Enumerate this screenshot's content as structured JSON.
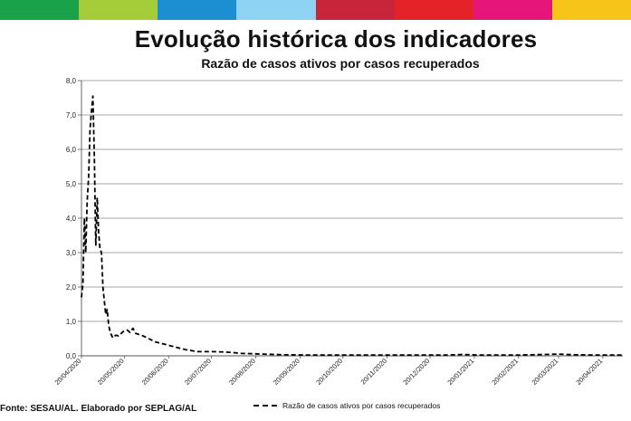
{
  "header_colors": [
    "#1aa24a",
    "#a5cd39",
    "#1b8fd2",
    "#8ed3f4",
    "#c8243a",
    "#e62229",
    "#e5157a",
    "#f6c518"
  ],
  "title": "Evolução histórica dos indicadores",
  "subtitle": "Razão de casos ativos por casos recuperados",
  "source": "Fonte: SESAU/AL. Elaborado por SEPLAG/AL",
  "chart_data": {
    "type": "line",
    "title": "Razão de casos ativos por casos recuperados",
    "xlabel": "",
    "ylabel": "",
    "ylim": [
      0,
      8
    ],
    "yticks": [
      "0,0",
      "1,0",
      "2,0",
      "3,0",
      "4,0",
      "5,0",
      "6,0",
      "7,0",
      "8,0"
    ],
    "xticks": [
      "20/04/2020",
      "20/05/2020",
      "20/06/2020",
      "20/07/2020",
      "20/08/2020",
      "20/09/2020",
      "20/10/2020",
      "20/11/2020",
      "20/12/2020",
      "20/01/2021",
      "20/02/2021",
      "20/03/2021",
      "20/04/2021"
    ],
    "grid": "horizontal",
    "legend_position": "bottom",
    "series": [
      {
        "name": "Razão de casos ativos por casos recuperados",
        "color": "#000000",
        "line_style": "dashed",
        "points": [
          [
            "2020-04-20",
            1.7
          ],
          [
            "2020-04-21",
            2.1
          ],
          [
            "2020-04-22",
            4.0
          ],
          [
            "2020-04-23",
            3.0
          ],
          [
            "2020-04-24",
            4.5
          ],
          [
            "2020-04-25",
            5.2
          ],
          [
            "2020-04-26",
            6.6
          ],
          [
            "2020-04-27",
            7.1
          ],
          [
            "2020-04-28",
            7.55
          ],
          [
            "2020-04-29",
            5.8
          ],
          [
            "2020-04-30",
            3.2
          ],
          [
            "2020-05-01",
            4.6
          ],
          [
            "2020-05-02",
            3.6
          ],
          [
            "2020-05-03",
            3.1
          ],
          [
            "2020-05-04",
            3.0
          ],
          [
            "2020-05-05",
            2.0
          ],
          [
            "2020-05-06",
            1.6
          ],
          [
            "2020-05-07",
            1.2
          ],
          [
            "2020-05-08",
            1.35
          ],
          [
            "2020-05-09",
            0.9
          ],
          [
            "2020-05-10",
            0.7
          ],
          [
            "2020-05-11",
            0.6
          ],
          [
            "2020-05-12",
            0.52
          ],
          [
            "2020-05-14",
            0.6
          ],
          [
            "2020-05-16",
            0.58
          ],
          [
            "2020-05-19",
            0.7
          ],
          [
            "2020-05-22",
            0.75
          ],
          [
            "2020-05-24",
            0.68
          ],
          [
            "2020-05-26",
            0.8
          ],
          [
            "2020-05-28",
            0.65
          ],
          [
            "2020-06-01",
            0.6
          ],
          [
            "2020-06-06",
            0.5
          ],
          [
            "2020-06-11",
            0.4
          ],
          [
            "2020-06-18",
            0.33
          ],
          [
            "2020-06-25",
            0.25
          ],
          [
            "2020-07-02",
            0.18
          ],
          [
            "2020-07-10",
            0.12
          ],
          [
            "2020-07-20",
            0.12
          ],
          [
            "2020-07-30",
            0.11
          ],
          [
            "2020-08-10",
            0.07
          ],
          [
            "2020-08-25",
            0.05
          ],
          [
            "2020-09-10",
            0.03
          ],
          [
            "2020-10-01",
            0.02
          ],
          [
            "2020-11-01",
            0.02
          ],
          [
            "2020-12-01",
            0.02
          ],
          [
            "2021-01-01",
            0.02
          ],
          [
            "2021-01-12",
            0.04
          ],
          [
            "2021-01-22",
            0.02
          ],
          [
            "2021-02-20",
            0.02
          ],
          [
            "2021-03-10",
            0.04
          ],
          [
            "2021-03-20",
            0.05
          ],
          [
            "2021-04-01",
            0.03
          ],
          [
            "2021-04-20",
            0.02
          ],
          [
            "2021-05-04",
            0.02
          ]
        ]
      }
    ]
  }
}
